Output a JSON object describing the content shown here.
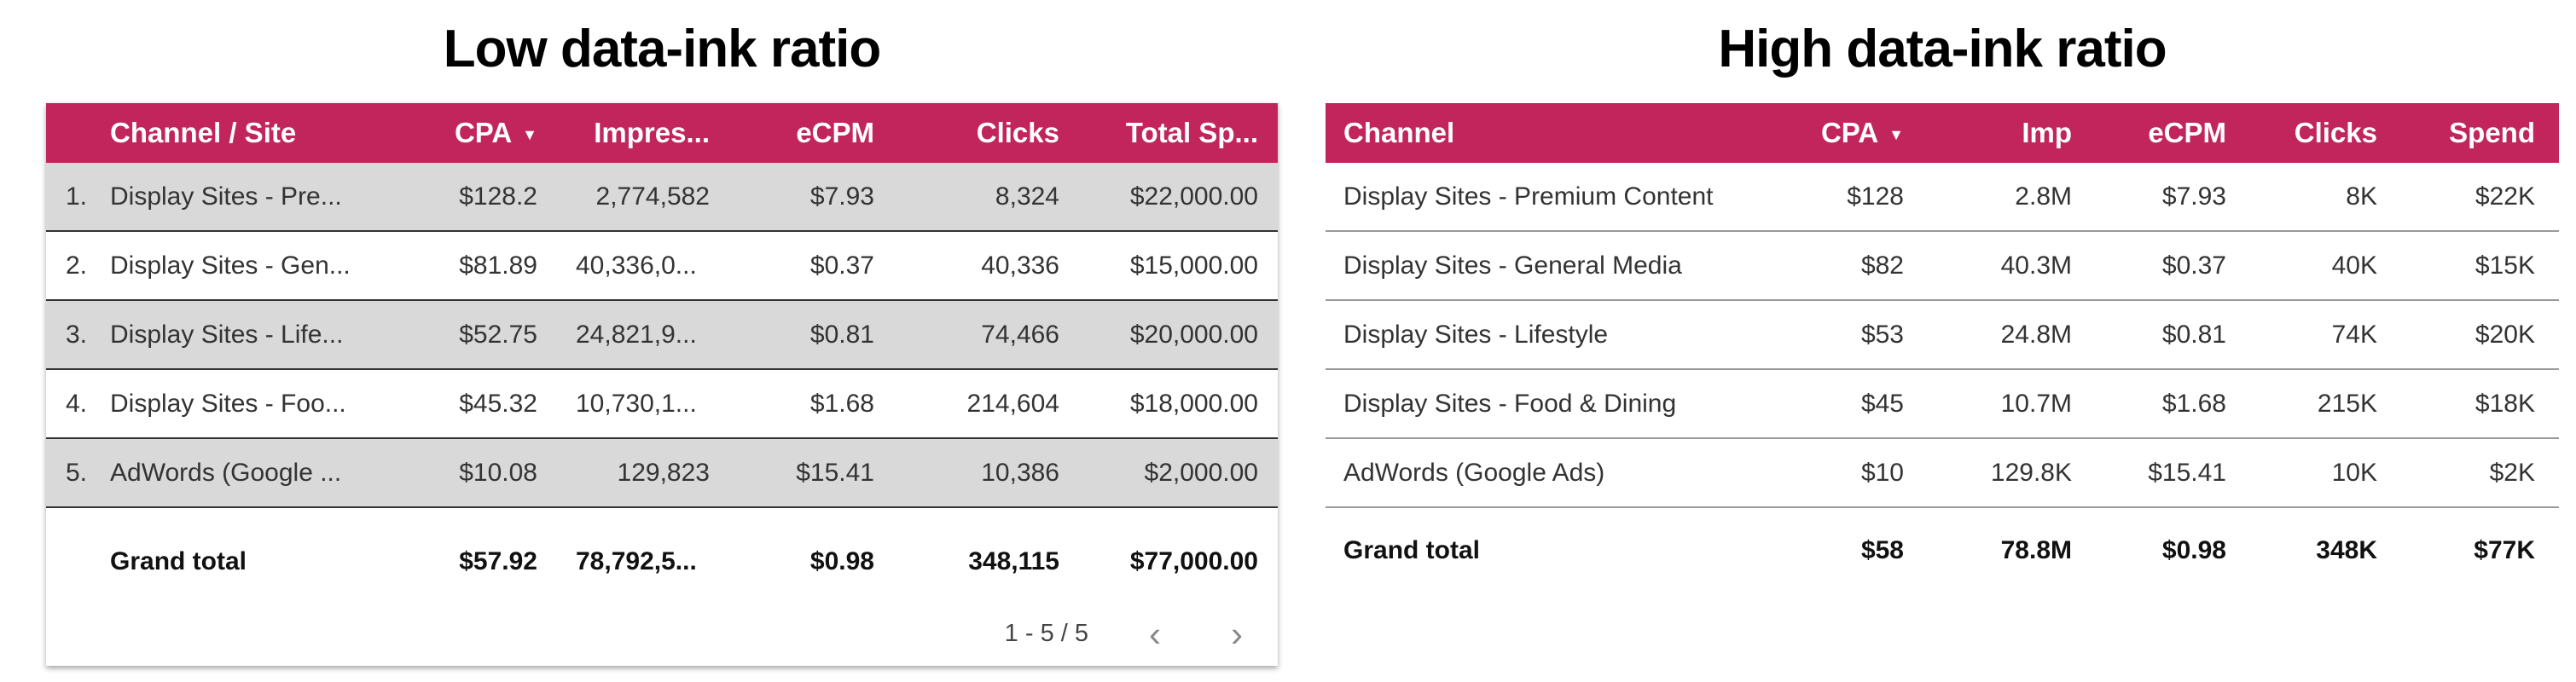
{
  "low": {
    "title": "Low data-ink ratio",
    "headers": {
      "channel": "Channel / Site",
      "cpa": "CPA",
      "imp": "Impres...",
      "ecpm": "eCPM",
      "clicks": "Clicks",
      "spend": "Total Sp..."
    },
    "sort_icon": "sort-descending-icon",
    "rows": [
      {
        "num": "1.",
        "channel": "Display Sites - Pre...",
        "cpa": "$128.2",
        "imp": "2,774,582",
        "ecpm": "$7.93",
        "clicks": "8,324",
        "spend": "$22,000.00"
      },
      {
        "num": "2.",
        "channel": "Display Sites - Gen...",
        "cpa": "$81.89",
        "imp": "40,336,0...",
        "ecpm": "$0.37",
        "clicks": "40,336",
        "spend": "$15,000.00"
      },
      {
        "num": "3.",
        "channel": "Display Sites - Life...",
        "cpa": "$52.75",
        "imp": "24,821,9...",
        "ecpm": "$0.81",
        "clicks": "74,466",
        "spend": "$20,000.00"
      },
      {
        "num": "4.",
        "channel": "Display Sites - Foo...",
        "cpa": "$45.32",
        "imp": "10,730,1...",
        "ecpm": "$1.68",
        "clicks": "214,604",
        "spend": "$18,000.00"
      },
      {
        "num": "5.",
        "channel": "AdWords (Google ...",
        "cpa": "$10.08",
        "imp": "129,823",
        "ecpm": "$15.41",
        "clicks": "10,386",
        "spend": "$2,000.00"
      }
    ],
    "total": {
      "label": "Grand total",
      "cpa": "$57.92",
      "imp": "78,792,5...",
      "ecpm": "$0.98",
      "clicks": "348,115",
      "spend": "$77,000.00"
    },
    "pagination": {
      "range": "1 - 5 / 5",
      "prev": "‹",
      "next": "›"
    }
  },
  "high": {
    "title": "High data-ink ratio",
    "headers": {
      "channel": "Channel",
      "cpa": "CPA",
      "imp": "Imp",
      "ecpm": "eCPM",
      "clicks": "Clicks",
      "spend": "Spend"
    },
    "rows": [
      {
        "channel": "Display Sites - Premium Content",
        "cpa": "$128",
        "imp": "2.8M",
        "ecpm": "$7.93",
        "clicks": "8K",
        "spend": "$22K"
      },
      {
        "channel": "Display Sites - General Media",
        "cpa": "$82",
        "imp": "40.3M",
        "ecpm": "$0.37",
        "clicks": "40K",
        "spend": "$15K"
      },
      {
        "channel": "Display Sites - Lifestyle",
        "cpa": "$53",
        "imp": "24.8M",
        "ecpm": "$0.81",
        "clicks": "74K",
        "spend": "$20K"
      },
      {
        "channel": "Display Sites - Food & Dining",
        "cpa": "$45",
        "imp": "10.7M",
        "ecpm": "$1.68",
        "clicks": "215K",
        "spend": "$18K"
      },
      {
        "channel": "AdWords (Google Ads)",
        "cpa": "$10",
        "imp": "129.8K",
        "ecpm": "$15.41",
        "clicks": "10K",
        "spend": "$2K"
      }
    ],
    "total": {
      "label": "Grand total",
      "cpa": "$58",
      "imp": "78.8M",
      "ecpm": "$0.98",
      "clicks": "348K",
      "spend": "$77K"
    }
  },
  "colors": {
    "header_bg": "#C2255C",
    "header_text": "#FFFFFF",
    "alt_row": "#D9D9D9"
  }
}
